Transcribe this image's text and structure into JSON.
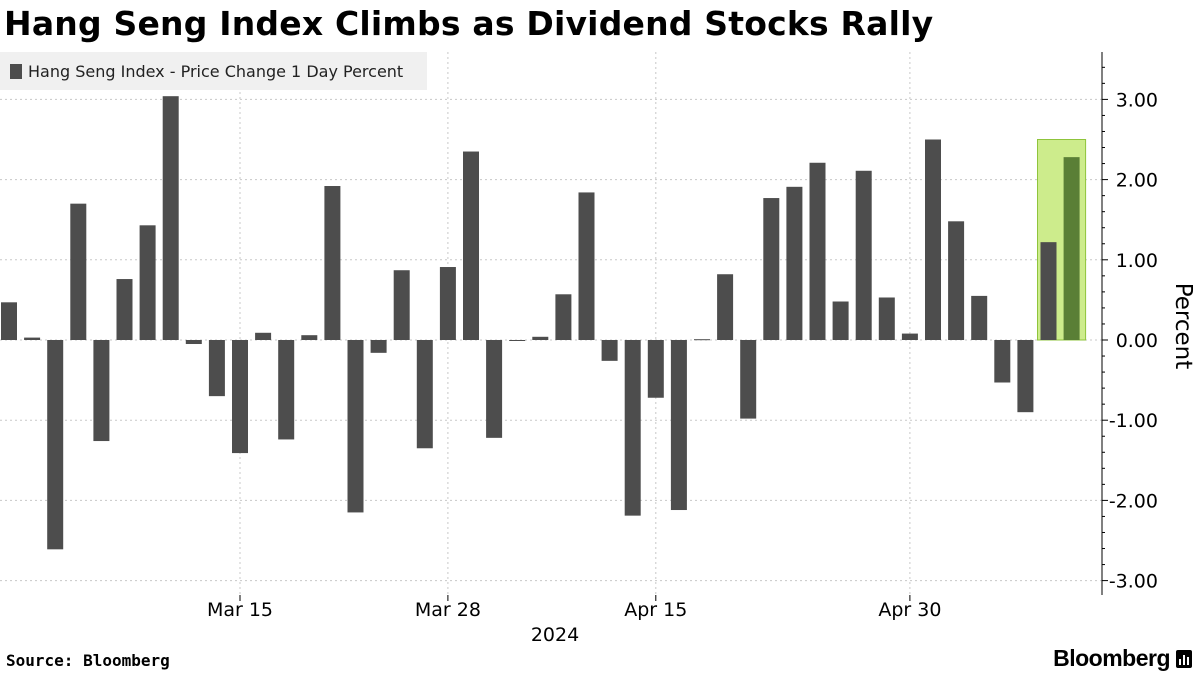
{
  "title": "Hang Seng Index Climbs as Dividend Stocks Rally",
  "source": "Source: Bloomberg",
  "brand": "Bloomberg",
  "colors": {
    "bar": "#4d4d4d",
    "highlight_fill": "#cdec8c",
    "highlight_stroke": "#8fc43c",
    "highlight_bar": "#5a7f36"
  },
  "chart_data": {
    "type": "bar",
    "title": "Hang Seng Index Climbs as Dividend Stocks Rally",
    "series": [
      {
        "name": "Hang Seng Index - Price Change 1 Day Percent",
        "values": [
          0.47,
          0.03,
          -2.61,
          1.7,
          -1.26,
          0.76,
          1.43,
          3.04,
          -0.05,
          -0.7,
          -1.41,
          0.09,
          -1.24,
          0.06,
          1.92,
          -2.15,
          -0.16,
          0.87,
          -1.35,
          0.91,
          2.35,
          -1.22,
          -0.01,
          0.04,
          0.57,
          1.84,
          -0.26,
          -2.19,
          -0.72,
          -2.12,
          0.01,
          0.82,
          -0.98,
          1.77,
          1.91,
          2.21,
          0.48,
          2.11,
          0.53,
          0.08,
          2.5,
          1.48,
          0.55,
          -0.53,
          -0.9,
          1.22,
          2.28
        ]
      }
    ],
    "highlight_index": 46,
    "x_ticks": [
      {
        "label": "Mar 15",
        "index": 10
      },
      {
        "label": "Mar 28",
        "index": 19
      },
      {
        "label": "Apr 15",
        "index": 28
      },
      {
        "label": "Apr 30",
        "index": 39
      }
    ],
    "x_sublabel": "2024",
    "y_ticks": [
      "3.00",
      "2.00",
      "1.00",
      "0.00",
      "-1.00",
      "-2.00",
      "-3.00"
    ],
    "ylim": [
      -3.2,
      3.6
    ],
    "ylabel": "Percent",
    "xlabel": "",
    "axis_position": "right",
    "grid": true
  }
}
